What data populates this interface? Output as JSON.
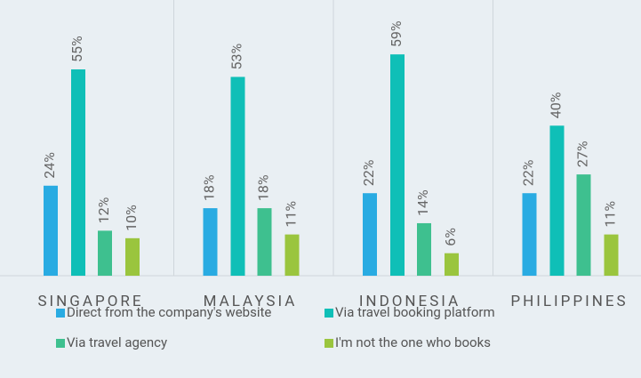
{
  "chart_data": {
    "type": "bar",
    "categories": [
      "SINGAPORE",
      "MALAYSIA",
      "INDONESIA",
      "PHILIPPINES"
    ],
    "series": [
      {
        "name": "Direct from the company's website",
        "color": "#29abe2",
        "values": [
          24,
          18,
          22,
          22
        ],
        "value_labels": [
          "24%",
          "18%",
          "22%",
          "22%"
        ]
      },
      {
        "name": "Via travel booking platform",
        "color": "#0fbfb7",
        "values": [
          55,
          53,
          59,
          40
        ],
        "value_labels": [
          "55%",
          "53%",
          "59%",
          "40%"
        ]
      },
      {
        "name": "Via travel agency",
        "color": "#3ec08f",
        "values": [
          12,
          18,
          14,
          27
        ],
        "value_labels": [
          "12%",
          "18%",
          "14%",
          "27%"
        ]
      },
      {
        "name": "I'm not the one who books",
        "color": "#9ac53e",
        "values": [
          10,
          11,
          6,
          11
        ],
        "value_labels": [
          "10%",
          "11%",
          "6%",
          "11%"
        ]
      }
    ],
    "ylim": [
      0,
      73.5
    ],
    "legend": "bottom"
  }
}
